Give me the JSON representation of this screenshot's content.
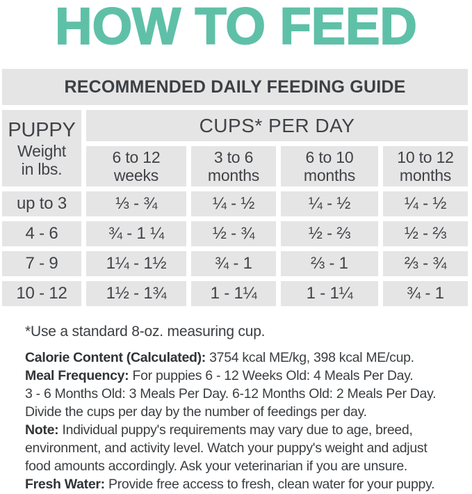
{
  "title": "HOW TO FEED",
  "colors": {
    "accent_teal": "#5FC0A8",
    "cell_background": "#E6E5E5",
    "text_dark": "#3F4347"
  },
  "table": {
    "banner": "RECOMMENDED DAILY FEEDING GUIDE",
    "corner": {
      "line1": "PUPPY",
      "line2": "Weight",
      "line3": "in lbs."
    },
    "group_header": "CUPS* PER DAY",
    "col_headers": [
      {
        "line1": "6 to 12",
        "line2": "weeks"
      },
      {
        "line1": "3 to 6",
        "line2": "months"
      },
      {
        "line1": "6 to 10",
        "line2": "months"
      },
      {
        "line1": "10 to 12",
        "line2": "months"
      }
    ],
    "rows": [
      {
        "weight": "up to 3",
        "values": [
          "⅓ - ¾",
          "¼ - ½",
          "¼ - ½",
          "¼ - ½"
        ]
      },
      {
        "weight": "4 - 6",
        "values": [
          "¾ - 1 ¼",
          "½ - ¾",
          "½ - ⅔",
          "½ - ⅔"
        ]
      },
      {
        "weight": "7 - 9",
        "values": [
          "1¼ - 1½",
          "¾ - 1",
          "⅔ - 1",
          "⅔ - ¾"
        ]
      },
      {
        "weight": "10 - 12",
        "values": [
          "1½ - 1¾",
          "1 - 1¼",
          "1 - 1¼",
          "¾ - 1"
        ]
      }
    ]
  },
  "footnote": "*Use a standard 8-oz. measuring cup.",
  "notes": [
    {
      "label": "Calorie Content (Calculated):",
      "text": " 3754 kcal ME/kg, 398 kcal ME/cup."
    },
    {
      "label": "Meal Frequency:",
      "text": " For puppies 6 - 12 Weeks Old: 4 Meals Per Day."
    },
    {
      "label": "",
      "text": "3 - 6 Months Old: 3 Meals Per Day. 6-12 Months Old: 2 Meals Per Day."
    },
    {
      "label": "",
      "text": "Divide the cups per day by the number of feedings per day."
    },
    {
      "label": "Note:",
      "text": "  Individual puppy's requirements may vary due to age, breed,"
    },
    {
      "label": "",
      "text": "environment, and activity level. Watch your puppy's weight and adjust"
    },
    {
      "label": "",
      "text": "food amounts accordingly. Ask your veterinarian if you are unsure."
    },
    {
      "label": "Fresh Water:",
      "text": " Provide free access to fresh, clean water for your puppy."
    }
  ]
}
